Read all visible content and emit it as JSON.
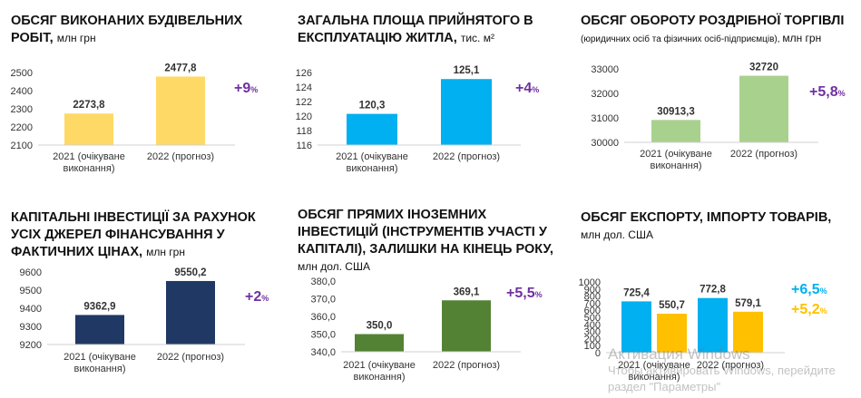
{
  "panels": [
    {
      "title_bold": "ОБСЯГ ВИКОНАНИХ БУДІВЕЛЬНИХ РОБІТ,",
      "title_unit": "млн грн",
      "growth": "+9",
      "growth_pct": "%"
    },
    {
      "title_bold": "ЗАГАЛЬНА ПЛОЩА ПРИЙНЯТОГО В ЕКСПЛУАТАЦІЮ ЖИТЛА,",
      "title_unit": "тис. м²",
      "growth": "+4",
      "growth_pct": "%"
    },
    {
      "title_bold": "ОБСЯГ ОБОРОТУ РОЗДРІБНОЇ ТОРГІВЛІ",
      "title_sub": "(юридичних осіб та фізичних осіб-підприємців), ",
      "title_unit": "млн грн",
      "growth": "+5,8",
      "growth_pct": "%"
    },
    {
      "title_bold": "КАПІТАЛЬНІ ІНВЕСТИЦІЇ ЗА РАХУНОК УСІХ ДЖЕРЕЛ ФІНАНСУВАННЯ У ФАКТИЧНИХ ЦІНАХ,",
      "title_unit": "млн грн",
      "growth": "+2",
      "growth_pct": "%"
    },
    {
      "title_bold": "ОБСЯГ ПРЯМИХ ІНОЗЕМНИХ ІНВЕСТИЦІЙ (ІНСТРУМЕНТІВ УЧАСТІ У КАПІТАЛІ), ЗАЛИШКИ НА КІНЕЦЬ РОКУ,",
      "title_unit": "млн дол. США",
      "growth": "+5,5",
      "growth_pct": "%"
    },
    {
      "title_bold": "ОБСЯГ ЕКСПОРТУ, ІМПОРТУ ТОВАРІВ,",
      "title_unit": "млн дол.  США",
      "growth": "+6,5",
      "growth_pct": "%",
      "growth2": "+5,2",
      "growth2_pct": "%"
    }
  ],
  "watermark": {
    "line1": "Активация Windows",
    "line2": "Чтобы активировать Windows, перейдите",
    "line3": "раздел \"Параметры\""
  },
  "colors": {
    "yellow": "#FFD966",
    "blue": "#00B0F0",
    "green": "#A9D18E",
    "navy": "#1F3864",
    "darkgreen": "#548235",
    "amber": "#FFC000",
    "growth": "#7030A0",
    "growth_export": "#00B0F0",
    "growth_import": "#FFC000"
  },
  "chart_data": [
    {
      "type": "bar",
      "categories": [
        "2021 (очікуване виконання)",
        "2022 (прогноз)"
      ],
      "values": [
        2273.8,
        2477.8
      ],
      "labels": [
        "2273,8",
        "2477,8"
      ],
      "yticks": [
        "2100",
        "2200",
        "2300",
        "2400",
        "2500"
      ],
      "ylim": [
        2100,
        2500
      ],
      "color": "#FFD966"
    },
    {
      "type": "bar",
      "categories": [
        "2021 (очікуване виконання)",
        "2022 (прогноз)"
      ],
      "values": [
        120.3,
        125.1
      ],
      "labels": [
        "120,3",
        "125,1"
      ],
      "yticks": [
        "116",
        "118",
        "120",
        "122",
        "124",
        "126"
      ],
      "ylim": [
        116,
        126
      ],
      "color": "#00B0F0"
    },
    {
      "type": "bar",
      "categories": [
        "2021 (очікуване виконання)",
        "2022 (прогноз)"
      ],
      "values": [
        30913.3,
        32720
      ],
      "labels": [
        "30913,3",
        "32720"
      ],
      "yticks": [
        "30000",
        "31000",
        "32000",
        "33000"
      ],
      "ylim": [
        30000,
        33000
      ],
      "color": "#A9D18E"
    },
    {
      "type": "bar",
      "categories": [
        "2021 (очікуване виконання)",
        "2022 (прогноз)"
      ],
      "values": [
        9362.9,
        9550.2
      ],
      "labels": [
        "9362,9",
        "9550,2"
      ],
      "yticks": [
        "9200",
        "9300",
        "9400",
        "9500",
        "9600"
      ],
      "ylim": [
        9200,
        9600
      ],
      "color": "#1F3864"
    },
    {
      "type": "bar",
      "categories": [
        "2021 (очікуване виконання)",
        "2022 (прогноз)"
      ],
      "values": [
        350.0,
        369.1
      ],
      "labels": [
        "350,0",
        "369,1"
      ],
      "yticks": [
        "340,0",
        "350,0",
        "360,0",
        "370,0",
        "380,0"
      ],
      "ylim": [
        340,
        380
      ],
      "color": "#548235"
    },
    {
      "type": "bar",
      "categories": [
        "2021 (очікуване виконання)",
        "2022 (прогноз)"
      ],
      "series": [
        {
          "values": [
            725.4,
            772.8
          ],
          "labels": [
            "725,4",
            "772,8"
          ],
          "color": "#00B0F0"
        },
        {
          "values": [
            550.7,
            579.1
          ],
          "labels": [
            "550,7",
            "579,1"
          ],
          "color": "#FFC000"
        }
      ],
      "yticks": [
        "0",
        "100",
        "200",
        "300",
        "400",
        "500",
        "600",
        "700",
        "800",
        "900",
        "1000"
      ],
      "ylim": [
        0,
        1000
      ]
    }
  ]
}
